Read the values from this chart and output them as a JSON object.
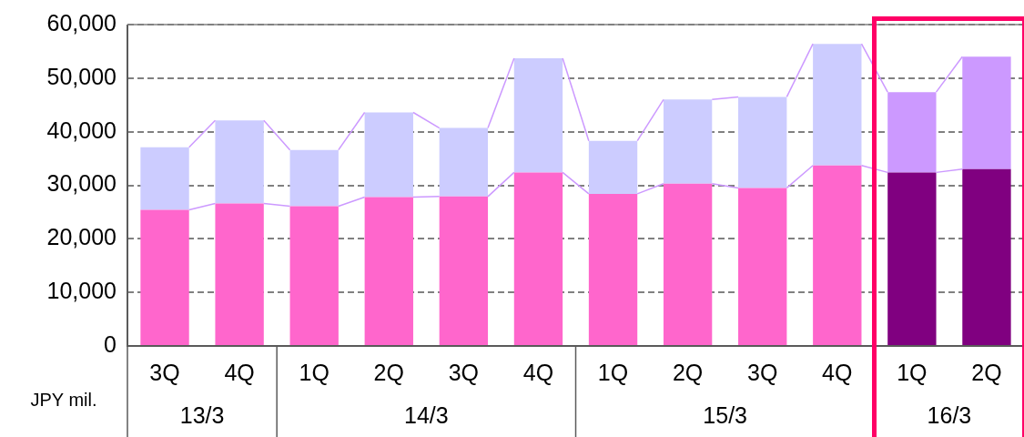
{
  "chart_data": {
    "type": "bar",
    "stacked": true,
    "ylabel": "JPY mil.",
    "categories": [
      "3Q",
      "4Q",
      "1Q",
      "2Q",
      "3Q",
      "4Q",
      "1Q",
      "2Q",
      "3Q",
      "4Q",
      "1Q",
      "2Q"
    ],
    "annotations": [
      "13/3",
      "14/3",
      "15/3",
      "16/3"
    ],
    "series": [
      {
        "values": [
          25400,
          26600,
          26100,
          27800,
          27900,
          32400,
          28400,
          30300,
          29500,
          33700,
          32400,
          33000
        ],
        "colors": [
          "#ff66cc",
          "#ff66cc",
          "#ff66cc",
          "#ff66cc",
          "#ff66cc",
          "#ff66cc",
          "#ff66cc",
          "#ff66cc",
          "#ff66cc",
          "#ff66cc",
          "#800080",
          "#800080"
        ]
      },
      {
        "values": [
          11700,
          15500,
          10500,
          15800,
          12800,
          21300,
          9900,
          15700,
          17000,
          22700,
          15000,
          21000
        ],
        "colors": [
          "#ccccff",
          "#ccccff",
          "#ccccff",
          "#ccccff",
          "#ccccff",
          "#ccccff",
          "#ccccff",
          "#ccccff",
          "#ccccff",
          "#ccccff",
          "#cc99ff",
          "#cc99ff"
        ]
      }
    ],
    "ylim": [
      0,
      60000
    ],
    "yticks": [
      {
        "value": 0,
        "label": "0"
      },
      {
        "value": 10000,
        "label": "10,000"
      },
      {
        "value": 20000,
        "label": "20,000"
      },
      {
        "value": 30000,
        "label": "30,000"
      },
      {
        "value": 40000,
        "label": "40,000"
      },
      {
        "value": 50000,
        "label": "50,000"
      },
      {
        "value": 60000,
        "label": "60,000"
      }
    ],
    "grid": "y",
    "legend": false
  }
}
